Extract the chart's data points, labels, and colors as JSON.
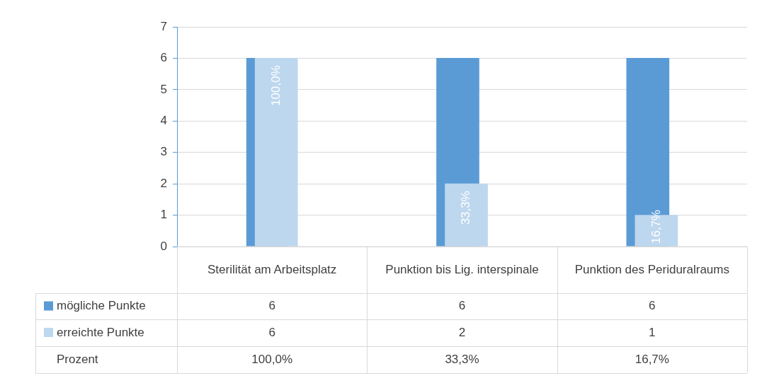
{
  "chart_data": {
    "type": "bar",
    "categories": [
      "Sterilität am Arbeitsplatz",
      "Punktion bis Lig. interspinale",
      "Punktion des Periduralraums"
    ],
    "series": [
      {
        "name": "mögliche Punkte",
        "color": "#5b9bd5",
        "values": [
          6,
          6,
          6
        ]
      },
      {
        "name": "erreichte Punkte",
        "color": "#bdd7ee",
        "values": [
          6,
          2,
          1
        ]
      }
    ],
    "ylim": [
      0,
      7
    ],
    "yticks": [
      0,
      1,
      2,
      3,
      4,
      5,
      6,
      7
    ],
    "grid": "y",
    "legend": "bottom",
    "data_labels": true,
    "annotations": [
      "Prozent",
      {
        "text": "100,0%",
        "x": "Sterilität am Arbeitsplatz",
        "y": 6
      },
      {
        "text": "33,3%",
        "x": "Punktion bis Lig. interspinale",
        "y": 2
      },
      {
        "text": "16,7%",
        "x": "Punktion des Periduralraums",
        "y": 1
      }
    ]
  }
}
